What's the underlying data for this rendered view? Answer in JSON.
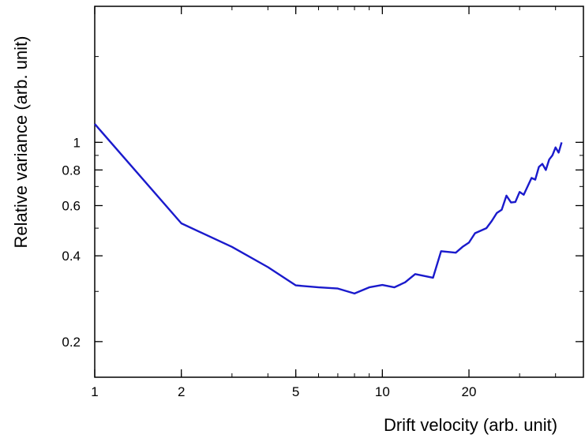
{
  "chart_data": {
    "type": "line",
    "xscale": "log",
    "yscale": "log",
    "xlabel": "Drift velocity (arb. unit)",
    "ylabel": "Relative variance (arb. unit)",
    "xlim": [
      1,
      50
    ],
    "ylim": [
      0.15,
      3.0
    ],
    "xticks": [
      {
        "value": 1,
        "label": "1"
      },
      {
        "value": 2,
        "label": "2"
      },
      {
        "value": 5,
        "label": "5"
      },
      {
        "value": 10,
        "label": "10"
      },
      {
        "value": 20,
        "label": "20"
      }
    ],
    "yticks": [
      {
        "value": 0.2,
        "label": "0.2"
      },
      {
        "value": 0.4,
        "label": "0.4"
      },
      {
        "value": 0.6,
        "label": "0.6"
      },
      {
        "value": 0.8,
        "label": "0.8"
      },
      {
        "value": 1,
        "label": "1"
      }
    ],
    "grid": false,
    "series": [
      {
        "color": "#1a1acc",
        "x": [
          1,
          2,
          3,
          4,
          5,
          6,
          7,
          8,
          9,
          10,
          11,
          12,
          13,
          15,
          16,
          18,
          19,
          20,
          21,
          23,
          24,
          25,
          26,
          27,
          28,
          29,
          30,
          31,
          33,
          34,
          35,
          36,
          37,
          38,
          39,
          40,
          41,
          42
        ],
        "y": [
          1.16,
          0.52,
          0.43,
          0.365,
          0.315,
          0.31,
          0.307,
          0.295,
          0.31,
          0.316,
          0.31,
          0.323,
          0.345,
          0.335,
          0.415,
          0.41,
          0.43,
          0.445,
          0.48,
          0.5,
          0.53,
          0.565,
          0.58,
          0.65,
          0.615,
          0.618,
          0.67,
          0.655,
          0.75,
          0.74,
          0.82,
          0.84,
          0.8,
          0.87,
          0.9,
          0.96,
          0.92,
          1.0
        ]
      }
    ]
  }
}
